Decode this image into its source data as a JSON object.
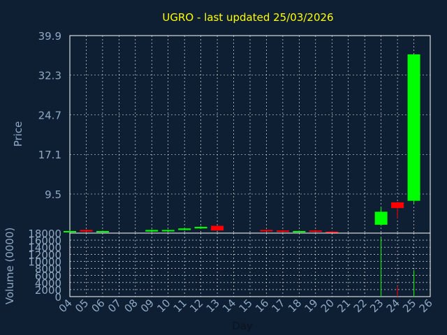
{
  "title": "UGRO - last updated 25/03/2026",
  "colors": {
    "background": "#0f1f33",
    "title": "#ffff00",
    "axis_text": "#8fa9c4",
    "frame": "#ffffff",
    "grid": "#ffffff",
    "up": "#00ff00",
    "down": "#ff0000"
  },
  "chart_data": [
    {
      "type": "candlestick",
      "ylabel": "Price",
      "ylim": [
        2.0,
        39.9
      ],
      "yticks": [
        "39.9",
        "32.3",
        "24.7",
        "17.1",
        "9.5"
      ],
      "ytick_values": [
        39.9,
        32.3,
        24.7,
        17.1,
        9.5
      ],
      "grid": true,
      "candles": [
        {
          "day": "04",
          "open": 2.3,
          "close": 2.4,
          "high": 2.5,
          "low": 2.2
        },
        {
          "day": "05",
          "open": 2.6,
          "close": 2.3,
          "high": 2.7,
          "low": 2.2
        },
        {
          "day": "06",
          "open": 2.3,
          "close": 2.4,
          "high": 2.5,
          "low": 2.2
        },
        {
          "day": "09",
          "open": 2.3,
          "close": 2.6,
          "high": 2.7,
          "low": 2.2
        },
        {
          "day": "10",
          "open": 2.4,
          "close": 2.6,
          "high": 2.7,
          "low": 2.3
        },
        {
          "day": "11",
          "open": 2.6,
          "close": 2.9,
          "high": 3.0,
          "low": 2.5
        },
        {
          "day": "12",
          "open": 2.9,
          "close": 3.2,
          "high": 3.3,
          "low": 2.8
        },
        {
          "day": "13",
          "open": 3.4,
          "close": 2.5,
          "high": 3.5,
          "low": 2.4
        },
        {
          "day": "16",
          "open": 2.6,
          "close": 2.4,
          "high": 2.7,
          "low": 2.3
        },
        {
          "day": "17",
          "open": 2.5,
          "close": 2.3,
          "high": 2.6,
          "low": 2.2
        },
        {
          "day": "18",
          "open": 2.3,
          "close": 2.4,
          "high": 2.5,
          "low": 2.2
        },
        {
          "day": "19",
          "open": 2.5,
          "close": 2.3,
          "high": 2.6,
          "low": 2.2
        },
        {
          "day": "20",
          "open": 2.3,
          "close": 2.2,
          "high": 2.4,
          "low": 2.1
        },
        {
          "day": "23",
          "open": 3.6,
          "close": 6.1,
          "high": 7.0,
          "low": 3.4
        },
        {
          "day": "24",
          "open": 7.9,
          "close": 6.8,
          "high": 8.0,
          "low": 4.8
        },
        {
          "day": "25",
          "open": 8.2,
          "close": 36.3,
          "high": 36.4,
          "low": 7.7
        }
      ]
    },
    {
      "type": "bar",
      "ylabel": "Volume (0000)",
      "xlabel": "Day",
      "ylim": [
        0,
        18000
      ],
      "yticks": [
        "18000",
        "16000",
        "14000",
        "12000",
        "10000",
        "8000",
        "6000",
        "4000",
        "2000",
        "0"
      ],
      "ytick_values": [
        18000,
        16000,
        14000,
        12000,
        10000,
        8000,
        6000,
        4000,
        2000,
        0
      ],
      "grid": true,
      "categories": [
        "04",
        "05",
        "06",
        "07",
        "08",
        "09",
        "10",
        "11",
        "12",
        "13",
        "14",
        "15",
        "16",
        "17",
        "18",
        "19",
        "20",
        "21",
        "22",
        "23",
        "24",
        "25",
        "26"
      ],
      "volumes": [
        {
          "day": "04",
          "value": 10,
          "direction": "up"
        },
        {
          "day": "05",
          "value": 10,
          "direction": "down"
        },
        {
          "day": "06",
          "value": 10,
          "direction": "up"
        },
        {
          "day": "09",
          "value": 10,
          "direction": "up"
        },
        {
          "day": "10",
          "value": 10,
          "direction": "up"
        },
        {
          "day": "11",
          "value": 10,
          "direction": "up"
        },
        {
          "day": "12",
          "value": 20,
          "direction": "up"
        },
        {
          "day": "13",
          "value": 20,
          "direction": "down"
        },
        {
          "day": "16",
          "value": 10,
          "direction": "down"
        },
        {
          "day": "17",
          "value": 10,
          "direction": "down"
        },
        {
          "day": "18",
          "value": 10,
          "direction": "up"
        },
        {
          "day": "19",
          "value": 10,
          "direction": "down"
        },
        {
          "day": "20",
          "value": 10,
          "direction": "down"
        },
        {
          "day": "23",
          "value": 16800,
          "direction": "up"
        },
        {
          "day": "24",
          "value": 3000,
          "direction": "down"
        },
        {
          "day": "25",
          "value": 7500,
          "direction": "up"
        }
      ]
    }
  ]
}
